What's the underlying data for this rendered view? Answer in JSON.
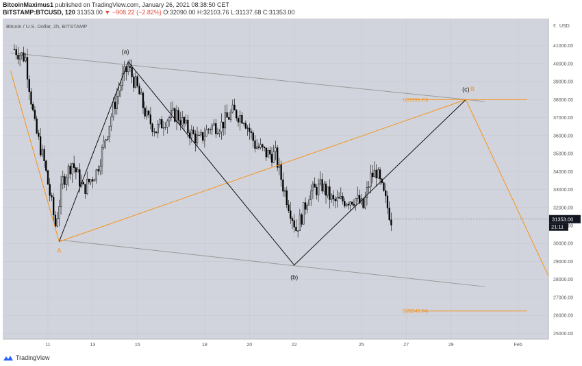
{
  "header": {
    "author": "BitcoinMaximus1",
    "published_text": "published on TradingView.com, January 26, 2021 08:38:50 CET",
    "symbol": "BITSTAMP:BTCUSD, 120",
    "price": "31353.00",
    "change": "▼ −908.22 (−2.82%)",
    "ohlc": "O:32090.00 H:32103.76 L:31137.68 C:31353.00"
  },
  "footer": {
    "brand": "TradingView"
  },
  "colors": {
    "plot_bg": "#d1d4dc",
    "candle": "#000000",
    "orange": "#f7931a",
    "channel": "#9a9a9a",
    "tag_bg": "#131722"
  },
  "chart_data": {
    "type": "candlestick",
    "title": "Bitcoin / U.S. Dollar, 2h, BITSTAMP",
    "currency": "USD",
    "x_ticks": [
      "11",
      "13",
      "15",
      "18",
      "20",
      "22",
      "25",
      "27",
      "29",
      "Feb"
    ],
    "y_ticks": [
      25000,
      26000,
      27000,
      28000,
      29000,
      30000,
      31000,
      32000,
      33000,
      34000,
      35000,
      36000,
      37000,
      38000,
      39000,
      40000,
      41000
    ],
    "y_tick_labels": [
      "25000.00",
      "26000.00",
      "27000.00",
      "28000.00",
      "29000.00",
      "30000.00",
      "31000.00",
      "32000.00",
      "33000.00",
      "34000.00",
      "35000.00",
      "36000.00",
      "37000.00",
      "38000.00",
      "39000.00",
      "40000.00",
      "41000.00"
    ],
    "ylim": [
      24500,
      42200
    ],
    "last_price": "31353.00",
    "countdown": "21:11",
    "price_path": [
      [
        "2021-01-09 12:00",
        40800
      ],
      [
        "2021-01-10 00:00",
        40300
      ],
      [
        "2021-01-10 10:00",
        36500
      ],
      [
        "2021-01-10 20:00",
        34500
      ],
      [
        "2021-01-11 08:00",
        31000
      ],
      [
        "2021-01-11 16:00",
        33500
      ],
      [
        "2021-01-12 02:00",
        34500
      ],
      [
        "2021-01-12 14:00",
        33000
      ],
      [
        "2021-01-13 04:00",
        34000
      ],
      [
        "2021-01-13 12:00",
        35500
      ],
      [
        "2021-01-13 22:00",
        37500
      ],
      [
        "2021-01-14 08:00",
        39200
      ],
      [
        "2021-01-14 14:00",
        39800
      ],
      [
        "2021-01-15 00:00",
        38600
      ],
      [
        "2021-01-15 10:00",
        37000
      ],
      [
        "2021-01-15 20:00",
        36300
      ],
      [
        "2021-01-16 06:00",
        36900
      ],
      [
        "2021-01-16 18:00",
        37200
      ],
      [
        "2021-01-17 06:00",
        36300
      ],
      [
        "2021-01-17 18:00",
        35700
      ],
      [
        "2021-01-18 06:00",
        36500
      ],
      [
        "2021-01-18 18:00",
        36600
      ],
      [
        "2021-01-19 06:00",
        37300
      ],
      [
        "2021-01-19 18:00",
        37000
      ],
      [
        "2021-01-20 06:00",
        35500
      ],
      [
        "2021-01-20 18:00",
        35000
      ],
      [
        "2021-01-21 04:00",
        34900
      ],
      [
        "2021-01-21 12:00",
        33200
      ],
      [
        "2021-01-21 22:00",
        31500
      ],
      [
        "2021-01-22 02:00",
        30800
      ],
      [
        "2021-01-22 08:00",
        31500
      ],
      [
        "2021-01-22 16:00",
        32800
      ],
      [
        "2021-01-23 06:00",
        33200
      ],
      [
        "2021-01-23 18:00",
        32300
      ],
      [
        "2021-01-24 06:00",
        32400
      ],
      [
        "2021-01-24 18:00",
        32500
      ],
      [
        "2021-01-25 02:00",
        32000
      ],
      [
        "2021-01-25 10:00",
        33700
      ],
      [
        "2021-01-25 16:00",
        34000
      ],
      [
        "2021-01-25 22:00",
        33000
      ],
      [
        "2021-01-26 04:00",
        32000
      ],
      [
        "2021-01-26 08:00",
        31353
      ]
    ],
    "drawings": {
      "wave_labels": [
        {
          "text": "A",
          "t": "2021-01-11 12:00",
          "y": 29500,
          "color": "orange"
        },
        {
          "text": "(a)",
          "t": "2021-01-14 11:00",
          "y": 40550,
          "color": "dark"
        },
        {
          "text": "(b)",
          "t": "2021-01-22 00:00",
          "y": 28000,
          "color": "dark"
        },
        {
          "text": "(c)",
          "t": "2021-01-29 16:00",
          "y": 38450,
          "color": "dark"
        },
        {
          "text": "B",
          "t": "2021-01-29 23:00",
          "y": 38470,
          "color": "orange"
        }
      ],
      "fib_labels": [
        {
          "text": "1(37999.23)",
          "level": 37999.23
        },
        {
          "text": "0(26245.54)",
          "level": 26245.54
        }
      ]
    }
  }
}
